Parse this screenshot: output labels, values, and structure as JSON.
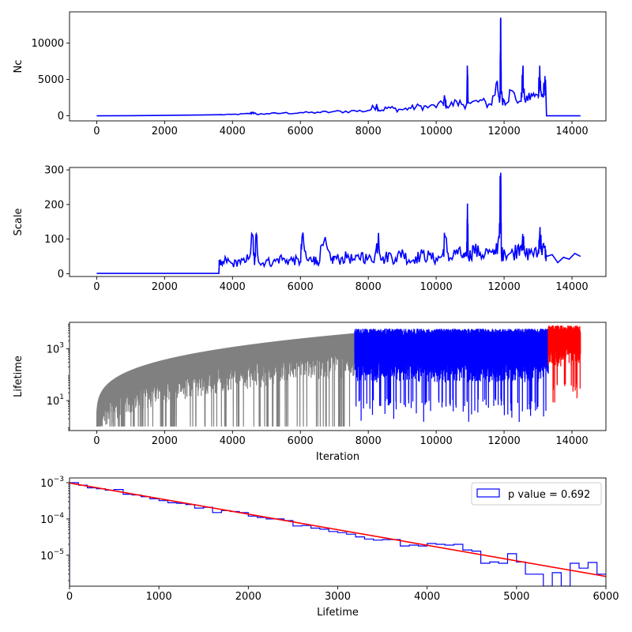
{
  "chart_data": [
    {
      "type": "line",
      "ylabel": "Nc",
      "xlabel": "",
      "xlim": [
        -800,
        15000
      ],
      "ylim": [
        -700,
        14300
      ],
      "xticks": [
        0,
        2000,
        4000,
        6000,
        8000,
        10000,
        12000,
        14000
      ],
      "yticks": [
        0,
        5000,
        10000
      ],
      "color": "#0000ff",
      "series": [
        {
          "x": [
            0,
            1000,
            2000,
            3000,
            3600,
            4000,
            4500,
            4600,
            4700,
            5000,
            5500,
            6000,
            6500,
            7000,
            7500,
            8000,
            8250,
            8300,
            8600,
            8900,
            9200,
            9500,
            9800,
            10200,
            10250,
            10300,
            10600,
            10900,
            10920,
            10950,
            11300,
            11600,
            11800,
            11880,
            11900,
            11920,
            12000,
            12200,
            12500,
            12550,
            12600,
            12800,
            13000,
            13050,
            13080,
            13150,
            13200,
            13220,
            13250,
            14250
          ],
          "y": [
            0,
            20,
            50,
            100,
            150,
            200,
            300,
            500,
            250,
            300,
            400,
            450,
            500,
            600,
            700,
            750,
            1600,
            800,
            1200,
            900,
            1100,
            1400,
            1300,
            1700,
            2600,
            1400,
            2000,
            1700,
            6300,
            1800,
            2200,
            1600,
            4800,
            2500,
            13500,
            3000,
            2200,
            3500,
            2000,
            6200,
            2400,
            3000,
            2800,
            6900,
            3500,
            3000,
            4600,
            5000,
            0,
            0
          ]
        }
      ]
    },
    {
      "type": "line",
      "ylabel": "Scale",
      "xlabel": "",
      "xlim": [
        -800,
        15000
      ],
      "ylim": [
        -8,
        307
      ],
      "xticks": [
        0,
        2000,
        4000,
        6000,
        8000,
        10000,
        12000,
        14000
      ],
      "yticks": [
        0,
        100,
        200,
        300
      ],
      "color": "#0000ff",
      "series": [
        {
          "x": [
            0,
            3600,
            3610,
            3700,
            3800,
            4000,
            4200,
            4400,
            4600,
            4650,
            4700,
            4800,
            5000,
            5200,
            5400,
            5600,
            5800,
            6000,
            6050,
            6200,
            6400,
            6500,
            6700,
            6900,
            7000,
            7200,
            7400,
            7600,
            7800,
            8000,
            8200,
            8300,
            8400,
            8600,
            8800,
            9000,
            9200,
            9400,
            9600,
            9800,
            10000,
            10200,
            10250,
            10400,
            10600,
            10800,
            10900,
            10920,
            10950,
            11100,
            11300,
            11500,
            11700,
            11850,
            11900,
            11920,
            12000,
            12200,
            12400,
            12550,
            12600,
            12800,
            13000,
            13060,
            13100,
            13200,
            13250,
            14250
          ],
          "y": [
            1,
            1,
            40,
            25,
            45,
            30,
            40,
            35,
            110,
            25,
            115,
            30,
            40,
            35,
            50,
            40,
            45,
            35,
            108,
            40,
            50,
            35,
            95,
            40,
            50,
            45,
            55,
            40,
            60,
            45,
            55,
            118,
            40,
            60,
            45,
            70,
            40,
            50,
            60,
            55,
            45,
            60,
            110,
            45,
            70,
            55,
            50,
            203,
            50,
            80,
            60,
            70,
            55,
            110,
            292,
            60,
            70,
            60,
            80,
            115,
            60,
            70,
            60,
            135,
            80,
            75,
            50,
            50
          ]
        }
      ]
    },
    {
      "type": "line",
      "ylabel": "Lifetime",
      "xlabel": "Iteration",
      "xlim": [
        -800,
        15000
      ],
      "yscale": "log",
      "ylim": [
        0.7,
        10500
      ],
      "xticks": [
        0,
        2000,
        4000,
        6000,
        8000,
        10000,
        12000,
        14000
      ],
      "yticks": [
        10,
        1000
      ],
      "ytick_labels": [
        "10^1",
        "10^3"
      ],
      "series": [
        {
          "color": "#808080",
          "x_range": [
            0,
            7600
          ],
          "y_envelope": "grows from ~1 at x=0 to ~4000 at x=7600; downward spikes to ~1"
        },
        {
          "color": "#0000ff",
          "x_range": [
            7600,
            13300
          ],
          "y_band": [
            50,
            6000
          ]
        },
        {
          "color": "#ff0000",
          "x_range": [
            13300,
            14250
          ],
          "y_band": [
            200,
            8000
          ]
        }
      ]
    },
    {
      "type": "histogram",
      "ylabel": "",
      "xlabel": "Lifetime",
      "xlim": [
        0,
        6000
      ],
      "yscale": "log",
      "ylim": [
        1.4e-06,
        0.00135
      ],
      "xticks": [
        0,
        1000,
        2000,
        3000,
        4000,
        5000,
        6000
      ],
      "yticks": [
        1e-05,
        0.0001,
        0.001
      ],
      "ytick_labels": [
        "10^-5",
        "10^-4",
        "10^-3"
      ],
      "legend": {
        "label": "p value = 0.692",
        "position": "upper right"
      },
      "hist_color": "#0000ff",
      "fit_color": "#ff0000",
      "bin_width": 100,
      "bin_values": [
        0.001,
        0.00085,
        0.00072,
        0.00068,
        0.00062,
        0.00065,
        0.00048,
        0.00046,
        0.00041,
        0.00036,
        0.00032,
        0.00028,
        0.00027,
        0.00025,
        0.0002,
        0.00021,
        0.00015,
        0.00017,
        0.00016,
        0.00015,
        0.00012,
        0.00011,
        0.0001,
        0.0001,
        9e-05,
        6.4e-05,
        6.6e-05,
        5.6e-05,
        5.2e-05,
        4.5e-05,
        4.2e-05,
        3.8e-05,
        3.2e-05,
        2.8e-05,
        2.6e-05,
        2.7e-05,
        2.7e-05,
        1.8e-05,
        1.9e-05,
        1.8e-05,
        2.1e-05,
        2e-05,
        1.9e-05,
        2e-05,
        1.4e-05,
        1.3e-05,
        6e-06,
        6.5e-06,
        6e-06,
        1.1e-05,
        6.5e-06,
        3e-06,
        3e-06,
        1.2e-06,
        3.3e-06,
        1.2e-06,
        6e-06,
        4.4e-06,
        6.3e-06,
        3e-06
      ],
      "fit_line": {
        "x": [
          0,
          6000
        ],
        "y": [
          0.00098,
          2.6e-06
        ]
      }
    }
  ]
}
